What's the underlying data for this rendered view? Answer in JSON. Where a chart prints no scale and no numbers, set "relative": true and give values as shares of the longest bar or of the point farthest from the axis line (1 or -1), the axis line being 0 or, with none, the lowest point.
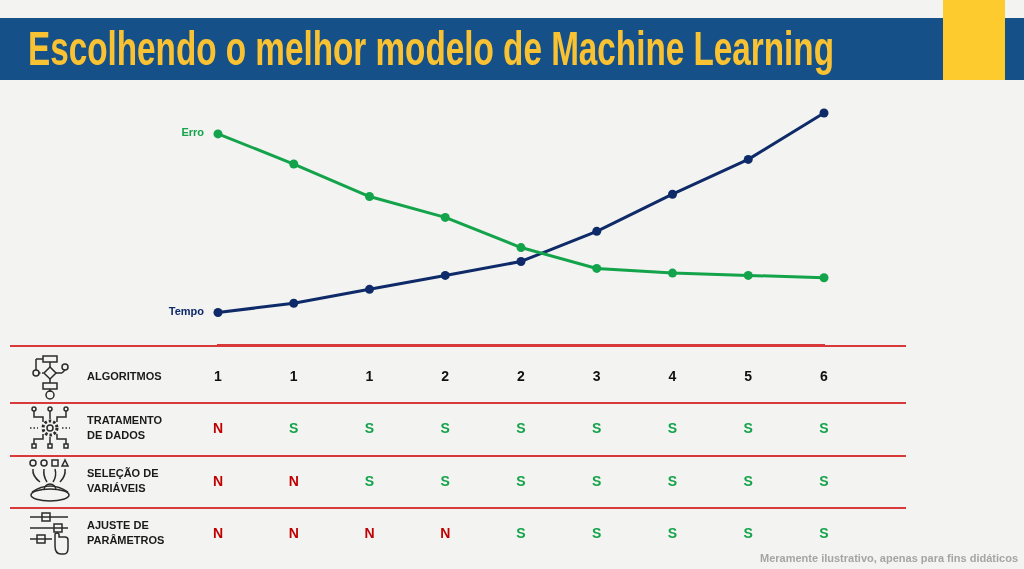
{
  "chart_data": [
    {
      "type": "line",
      "title": "Escolhendo o melhor modelo de Machine Learning",
      "xlabel": "ALGORITMOS",
      "categories": [
        "1",
        "1",
        "1",
        "2",
        "2",
        "3",
        "4",
        "5",
        "6"
      ],
      "relative": true,
      "marker": "circle",
      "line_style": "solid",
      "series": [
        {
          "name": "Erro",
          "color": "#13a34a",
          "values": [
            0.91,
            0.78,
            0.64,
            0.55,
            0.42,
            0.33,
            0.31,
            0.3,
            0.29
          ]
        },
        {
          "name": "Tempo",
          "color": "#0e2a68",
          "values": [
            0.14,
            0.18,
            0.24,
            0.3,
            0.36,
            0.49,
            0.65,
            0.8,
            1
          ]
        }
      ],
      "annotations": [
        "Meramente ilustrativo, apenas para fins didáticos"
      ]
    },
    {
      "type": "other",
      "y_categories": [
        "TRATAMENTO DE DADOS",
        "SELEÇÃO DE VARIÁVEIS",
        "AJUSTE DE PARÂMETROS"
      ],
      "cell_labels": [
        [
          "N",
          "S",
          "S",
          "S",
          "S",
          "S",
          "S",
          "S",
          "S"
        ],
        [
          "N",
          "N",
          "S",
          "S",
          "S",
          "S",
          "S",
          "S",
          "S"
        ],
        [
          "N",
          "N",
          "N",
          "N",
          "S",
          "S",
          "S",
          "S",
          "S"
        ]
      ],
      "colors": [
        [
          "#c00000",
          "#13a34a",
          "#13a34a",
          "#13a34a",
          "#13a34a",
          "#13a34a",
          "#13a34a",
          "#13a34a",
          "#13a34a"
        ],
        [
          "#c00000",
          "#c00000",
          "#13a34a",
          "#13a34a",
          "#13a34a",
          "#13a34a",
          "#13a34a",
          "#13a34a",
          "#13a34a"
        ],
        [
          "#c00000",
          "#c00000",
          "#c00000",
          "#c00000",
          "#13a34a",
          "#13a34a",
          "#13a34a",
          "#13a34a",
          "#13a34a"
        ]
      ]
    }
  ]
}
